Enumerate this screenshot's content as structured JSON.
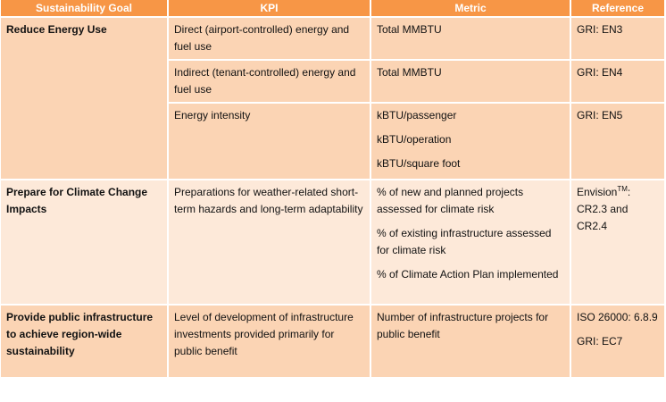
{
  "table": {
    "header": [
      "Sustainability Goal",
      "KPI",
      "Metric",
      "Reference"
    ],
    "rows": [
      {
        "goal": "Reduce Energy Use",
        "items": [
          {
            "kpi": "Direct (airport-controlled) energy and fuel use",
            "metrics": [
              "Total MMBTU"
            ],
            "reference": [
              {
                "text": "GRI: EN3"
              }
            ]
          },
          {
            "kpi": "Indirect (tenant-controlled) energy and fuel use",
            "metrics": [
              "Total MMBTU"
            ],
            "reference": [
              {
                "text": "GRI: EN4"
              }
            ]
          },
          {
            "kpi": "Energy intensity",
            "metrics": [
              "kBTU/passenger",
              "kBTU/operation",
              "kBTU/square foot"
            ],
            "reference": [
              {
                "text": "GRI: EN5"
              }
            ]
          }
        ]
      },
      {
        "goal": "Prepare for Climate Change Impacts",
        "items": [
          {
            "kpi": "Preparations for weather-related short-term hazards and long-term adaptability",
            "metrics": [
              "% of new and planned projects assessed for climate risk",
              "% of existing infrastructure assessed for climate risk",
              "% of Climate Action Plan implemented"
            ],
            "reference": [
              {
                "text": "Envision",
                "sup": "TM",
                "rest": ": CR2.3 and CR2.4"
              }
            ]
          }
        ]
      },
      {
        "goal": "Provide public infrastructure to achieve region-wide sustainability",
        "items": [
          {
            "kpi": "Level of development of infrastructure investments provided primarily for public benefit",
            "metrics": [
              "Number of infrastructure projects for public benefit"
            ],
            "reference": [
              {
                "text": "ISO 26000: 6.8.9"
              },
              {
                "text": "GRI: EC7"
              }
            ]
          }
        ]
      }
    ]
  }
}
